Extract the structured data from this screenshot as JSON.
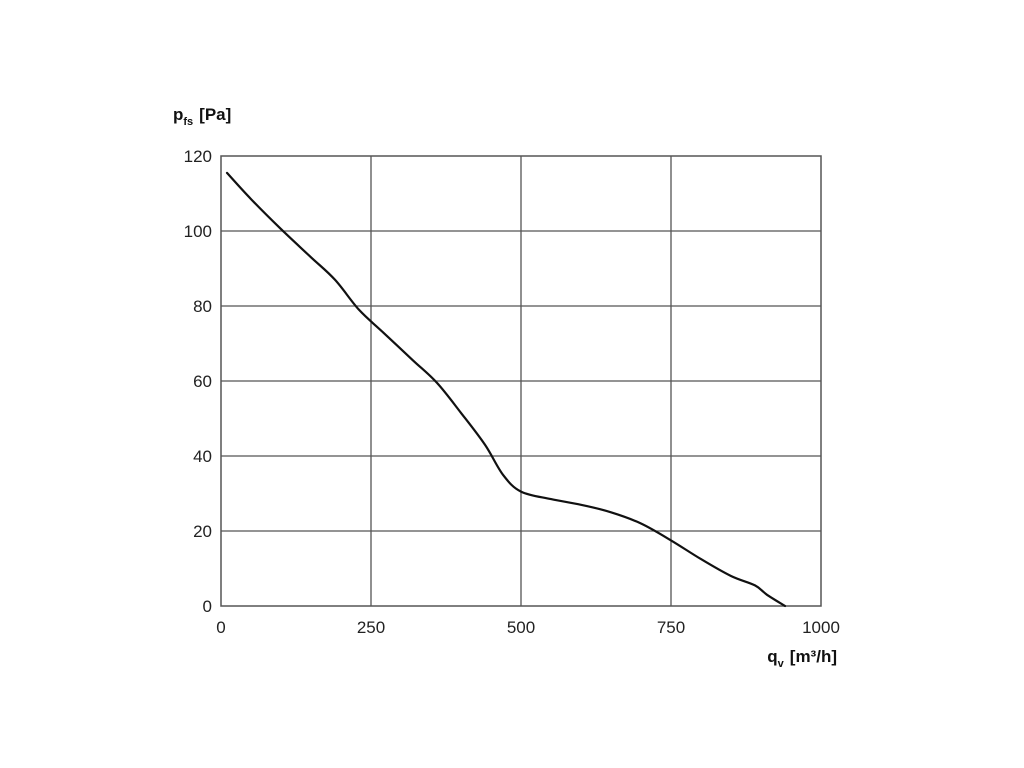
{
  "chart_data": {
    "type": "line",
    "ylabel": {
      "main": "p",
      "sub": "fs",
      "unit": "[Pa]"
    },
    "xlabel": {
      "main": "q",
      "sub": "v",
      "unit": "[m³/h]"
    },
    "xlim": [
      0,
      1000
    ],
    "ylim": [
      0,
      120
    ],
    "x_ticks": [
      "0",
      "250",
      "500",
      "750",
      "1000"
    ],
    "y_ticks": [
      "0",
      "20",
      "40",
      "60",
      "80",
      "100",
      "120"
    ],
    "grid": true,
    "series": [
      {
        "x": [
          10,
          50,
          100,
          150,
          190,
          230,
          270,
          320,
          360,
          400,
          440,
          470,
          500,
          550,
          600,
          650,
          700,
          750,
          800,
          850,
          890,
          910,
          940
        ],
        "y": [
          115.5,
          108.5,
          100.5,
          93,
          87,
          79,
          73,
          65.5,
          59.5,
          51.5,
          43,
          35,
          30.5,
          28.5,
          27,
          25,
          22,
          17.5,
          12.5,
          8,
          5.5,
          3,
          0
        ]
      }
    ]
  }
}
